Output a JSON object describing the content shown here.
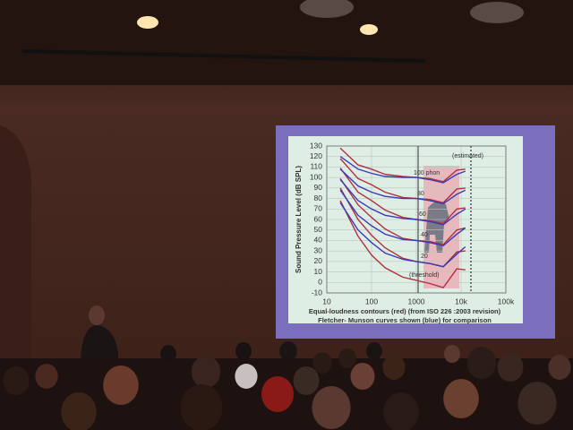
{
  "chart_data": {
    "type": "line",
    "y_label": "Sound Pressure Level (dB SPL)",
    "caption": [
      "Equal-loudness contours (red) (from ISO 226 :2003 revision)",
      "Fletcher- Munson curves shown (blue) for comparison"
    ],
    "annotations": [
      "(estimated)",
      "100 phon",
      "80",
      "60",
      "40",
      "20",
      "(threshold)"
    ],
    "log_x": true,
    "grid": true,
    "xlim": [
      10,
      100000
    ],
    "ylim": [
      -10,
      130
    ],
    "xticks": [
      10,
      100,
      1000,
      {
        "value": 10000,
        "label": "10k"
      },
      {
        "value": 100000,
        "label": "100k"
      }
    ],
    "yticks": [
      130,
      120,
      110,
      100,
      90,
      80,
      70,
      60,
      50,
      40,
      30,
      20,
      10,
      0,
      -10
    ],
    "x": [
      20,
      50,
      100,
      200,
      500,
      1000,
      2000,
      4000,
      8000,
      12500
    ],
    "series": [
      {
        "color": "#b03040",
        "values": [
          128,
          112,
          108,
          103,
          101,
          100,
          99,
          96,
          107,
          108
        ]
      },
      {
        "color": "#b03040",
        "values": [
          118,
          99,
          93,
          86,
          81,
          80,
          79,
          76,
          89,
          90
        ]
      },
      {
        "color": "#b03040",
        "values": [
          109,
          86,
          78,
          69,
          62,
          60,
          59,
          56,
          70,
          71
        ]
      },
      {
        "color": "#b03040",
        "values": [
          99,
          74,
          62,
          51,
          42,
          40,
          39,
          36,
          50,
          52
        ]
      },
      {
        "color": "#b03040",
        "values": [
          90,
          60,
          45,
          33,
          23,
          20,
          18,
          15,
          29,
          30
        ]
      },
      {
        "color": "#b03040",
        "values": [
          78,
          44,
          26,
          14,
          5,
          2,
          -1,
          -5,
          13,
          12
        ]
      },
      {
        "color": "#3a3ab8",
        "values": [
          120,
          108,
          104,
          101,
          100,
          100,
          98,
          95,
          103,
          106
        ]
      },
      {
        "color": "#3a3ab8",
        "values": [
          108,
          92,
          86,
          82,
          80,
          80,
          78,
          75,
          84,
          88
        ]
      },
      {
        "color": "#3a3ab8",
        "values": [
          98,
          78,
          70,
          64,
          61,
          60,
          58,
          55,
          65,
          70
        ]
      },
      {
        "color": "#3a3ab8",
        "values": [
          88,
          64,
          54,
          46,
          41,
          40,
          38,
          35,
          46,
          52
        ]
      },
      {
        "color": "#3a3ab8",
        "values": [
          76,
          50,
          38,
          28,
          22,
          20,
          18,
          15,
          27,
          34
        ]
      }
    ]
  }
}
